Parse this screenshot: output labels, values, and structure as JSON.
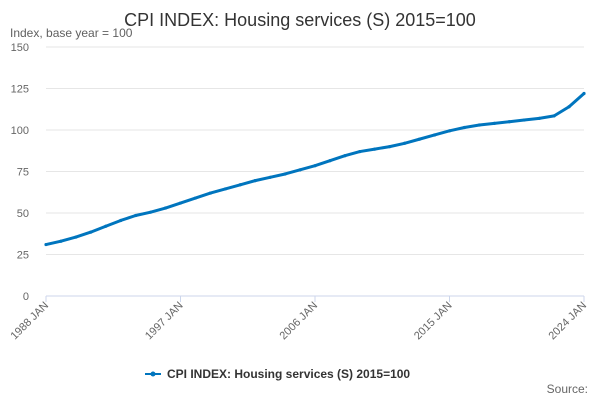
{
  "chart_data": {
    "type": "line",
    "title": "CPI INDEX: Housing services (S) 2015=100",
    "ylabel": "Index, base year = 100",
    "xlabel": "",
    "ylim": [
      0,
      150
    ],
    "yticks": [
      "0",
      "25",
      "50",
      "75",
      "100",
      "125",
      "150"
    ],
    "xlim": [
      1988,
      2024
    ],
    "xticks": [
      {
        "label": "1988 JAN",
        "year": 1988
      },
      {
        "label": "1997 JAN",
        "year": 1997
      },
      {
        "label": "2006 JAN",
        "year": 2006
      },
      {
        "label": "2015 JAN",
        "year": 2015
      },
      {
        "label": "2024 JAN",
        "year": 2024
      }
    ],
    "grid": true,
    "legend_position": "bottom",
    "series": [
      {
        "name": "CPI INDEX: Housing services (S) 2015=100",
        "color": "#0075be",
        "points": [
          {
            "date": "1988 JAN",
            "value": 31.0
          },
          {
            "date": "1989 JAN",
            "value": 33.0
          },
          {
            "date": "1990 JAN",
            "value": 35.5
          },
          {
            "date": "1991 JAN",
            "value": 38.5
          },
          {
            "date": "1992 JAN",
            "value": 42.0
          },
          {
            "date": "1993 JAN",
            "value": 45.5
          },
          {
            "date": "1994 JAN",
            "value": 48.5
          },
          {
            "date": "1995 JAN",
            "value": 50.5
          },
          {
            "date": "1996 JAN",
            "value": 53.0
          },
          {
            "date": "1997 JAN",
            "value": 56.0
          },
          {
            "date": "1998 JAN",
            "value": 59.0
          },
          {
            "date": "1999 JAN",
            "value": 62.0
          },
          {
            "date": "2000 JAN",
            "value": 64.5
          },
          {
            "date": "2001 JAN",
            "value": 67.0
          },
          {
            "date": "2002 JAN",
            "value": 69.5
          },
          {
            "date": "2003 JAN",
            "value": 71.5
          },
          {
            "date": "2004 JAN",
            "value": 73.5
          },
          {
            "date": "2005 JAN",
            "value": 76.0
          },
          {
            "date": "2006 JAN",
            "value": 78.5
          },
          {
            "date": "2007 JAN",
            "value": 81.5
          },
          {
            "date": "2008 JAN",
            "value": 84.5
          },
          {
            "date": "2009 JAN",
            "value": 87.0
          },
          {
            "date": "2010 JAN",
            "value": 88.5
          },
          {
            "date": "2011 JAN",
            "value": 90.0
          },
          {
            "date": "2012 JAN",
            "value": 92.0
          },
          {
            "date": "2013 JAN",
            "value": 94.5
          },
          {
            "date": "2014 JAN",
            "value": 97.0
          },
          {
            "date": "2015 JAN",
            "value": 99.5
          },
          {
            "date": "2016 JAN",
            "value": 101.5
          },
          {
            "date": "2017 JAN",
            "value": 103.0
          },
          {
            "date": "2018 JAN",
            "value": 104.0
          },
          {
            "date": "2019 JAN",
            "value": 105.0
          },
          {
            "date": "2020 JAN",
            "value": 106.0
          },
          {
            "date": "2021 JAN",
            "value": 107.0
          },
          {
            "date": "2022 JAN",
            "value": 108.5
          },
          {
            "date": "2023 JAN",
            "value": 114.0
          },
          {
            "date": "2024 JAN",
            "value": 122.0
          }
        ]
      }
    ]
  },
  "legend": {
    "label": "CPI INDEX: Housing services (S) 2015=100"
  },
  "source": {
    "label": "Source:"
  }
}
